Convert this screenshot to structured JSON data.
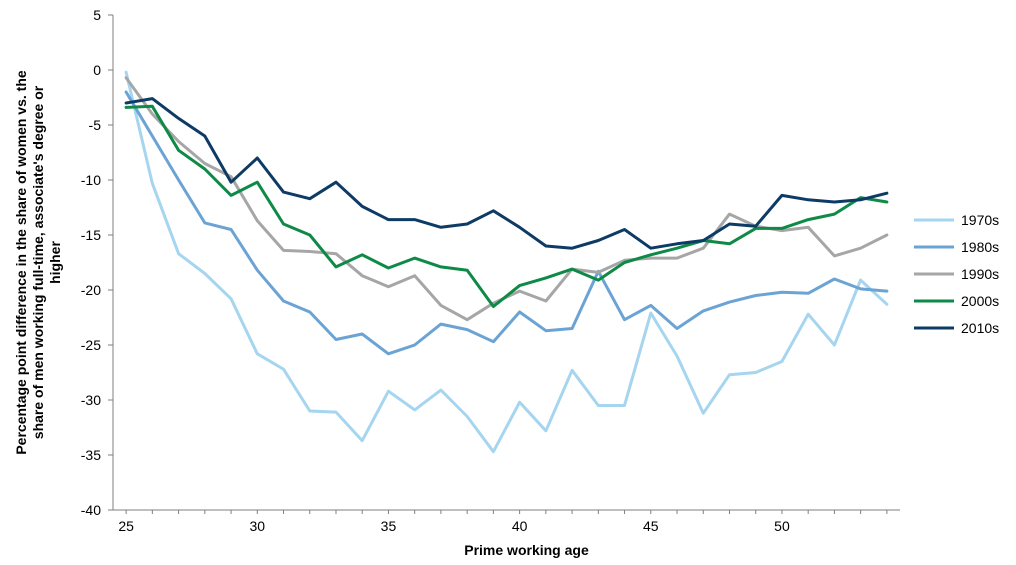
{
  "chart_data": {
    "type": "line",
    "xlabel": "Prime working age",
    "ylabel_lines": [
      "Percentage point difference in the share of women vs. the",
      "share of men working full-time, associate's degree or",
      "higher"
    ],
    "xlim": [
      24.5,
      54.5
    ],
    "ylim": [
      -40,
      5
    ],
    "x_ticks": [
      25,
      30,
      35,
      40,
      45,
      50
    ],
    "y_ticks": [
      5,
      0,
      -5,
      -10,
      -15,
      -20,
      -25,
      -30,
      -35,
      -40
    ],
    "x": [
      25,
      26,
      27,
      28,
      29,
      30,
      31,
      32,
      33,
      34,
      35,
      36,
      37,
      38,
      39,
      40,
      41,
      42,
      43,
      44,
      45,
      46,
      47,
      48,
      49,
      50,
      51,
      52,
      53,
      54
    ],
    "grid": false,
    "legend_position": "right",
    "series": [
      {
        "name": "1970s",
        "color": "#a6d5ef",
        "values": [
          -0.2,
          -10.3,
          -16.7,
          -18.5,
          -20.8,
          -25.8,
          -27.2,
          -31.0,
          -31.1,
          -33.7,
          -29.2,
          -30.9,
          -29.1,
          -31.5,
          -34.7,
          -30.2,
          -32.8,
          -27.3,
          -30.5,
          -30.5,
          -22.1,
          -26.0,
          -31.2,
          -27.7,
          -27.5,
          -26.5,
          -22.2,
          -25.0,
          -19.1,
          -21.3
        ]
      },
      {
        "name": "1980s",
        "color": "#6ba3d4",
        "values": [
          -2.0,
          -6.0,
          -10.0,
          -13.9,
          -14.5,
          -18.2,
          -21.0,
          -22.0,
          -24.5,
          -24.0,
          -25.8,
          -25.0,
          -23.1,
          -23.6,
          -24.7,
          -22.0,
          -23.7,
          -23.5,
          -18.3,
          -22.7,
          -21.4,
          -23.5,
          -21.9,
          -21.1,
          -20.5,
          -20.2,
          -20.3,
          -19.0,
          -19.9,
          -20.1
        ]
      },
      {
        "name": "1990s",
        "color": "#a6a6a6",
        "values": [
          -0.7,
          -4.0,
          -6.5,
          -8.5,
          -9.7,
          -13.7,
          -16.4,
          -16.5,
          -16.7,
          -18.7,
          -19.7,
          -18.7,
          -21.4,
          -22.7,
          -21.2,
          -20.1,
          -21.0,
          -18.1,
          -18.4,
          -17.3,
          -17.1,
          -17.1,
          -16.2,
          -13.1,
          -14.2,
          -14.6,
          -14.3,
          -16.9,
          -16.2,
          -15.0
        ]
      },
      {
        "name": "2000s",
        "color": "#0e8a47",
        "values": [
          -3.4,
          -3.3,
          -7.3,
          -9.0,
          -11.4,
          -10.2,
          -14.0,
          -15.0,
          -17.9,
          -16.8,
          -18.0,
          -17.1,
          -17.9,
          -18.2,
          -21.5,
          -19.6,
          -18.9,
          -18.1,
          -19.1,
          -17.5,
          -16.8,
          -16.2,
          -15.5,
          -15.8,
          -14.4,
          -14.4,
          -13.6,
          -13.1,
          -11.6,
          -12.0
        ]
      },
      {
        "name": "2010s",
        "color": "#0d3b66",
        "values": [
          -3.0,
          -2.6,
          -4.4,
          -6.0,
          -10.2,
          -8.0,
          -11.1,
          -11.7,
          -10.2,
          -12.4,
          -13.6,
          -13.6,
          -14.3,
          -14.0,
          -12.8,
          -14.3,
          -16.0,
          -16.2,
          -15.5,
          -14.5,
          -16.2,
          -15.8,
          -15.5,
          -14.0,
          -14.2,
          -11.4,
          -11.8,
          -12.0,
          -11.8,
          -11.2
        ]
      }
    ]
  }
}
